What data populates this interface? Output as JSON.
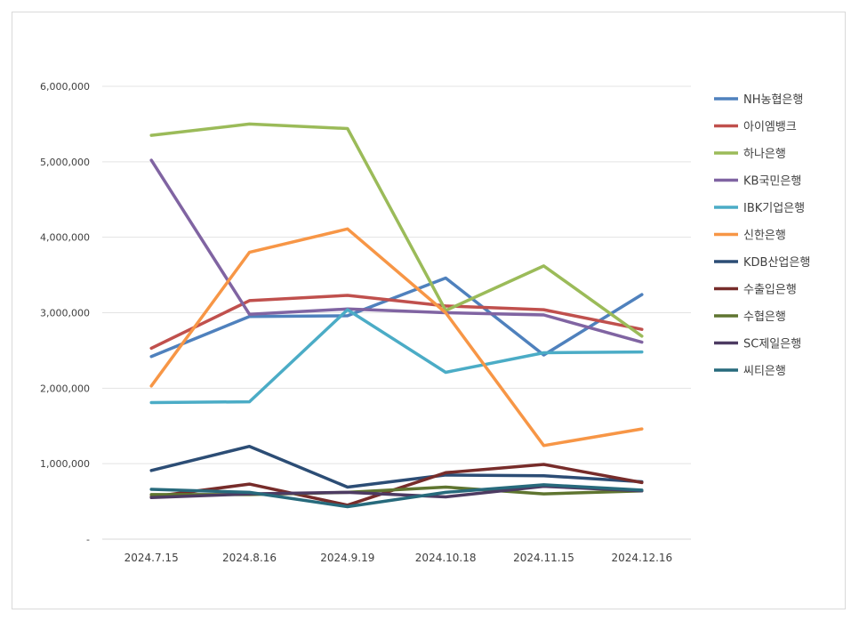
{
  "chart_data": {
    "type": "line",
    "title": "",
    "xlabel": "",
    "ylabel": "",
    "ylim": [
      0,
      6000000
    ],
    "y_ticks": [
      {
        "value": 0,
        "label": "-"
      },
      {
        "value": 1000000,
        "label": "1,000,000"
      },
      {
        "value": 2000000,
        "label": "2,000,000"
      },
      {
        "value": 3000000,
        "label": "3,000,000"
      },
      {
        "value": 4000000,
        "label": "4,000,000"
      },
      {
        "value": 5000000,
        "label": "5,000,000"
      },
      {
        "value": 6000000,
        "label": "6,000,000"
      }
    ],
    "categories": [
      "2024.7.15",
      "2024.8.16",
      "2024.9.19",
      "2024.10.18",
      "2024.11.15",
      "2024.12.16"
    ],
    "grid": true,
    "legend_position": "right",
    "series": [
      {
        "name": "NH농협은행",
        "color": "#4f81bd",
        "values": [
          2420000,
          2950000,
          2960000,
          3460000,
          2440000,
          3240000
        ]
      },
      {
        "name": "아이엠뱅크",
        "color": "#c0504d",
        "values": [
          2530000,
          3160000,
          3230000,
          3090000,
          3040000,
          2780000
        ]
      },
      {
        "name": "하나은행",
        "color": "#9bbb59",
        "values": [
          5350000,
          5500000,
          5440000,
          3030000,
          3620000,
          2690000
        ]
      },
      {
        "name": "KB국민은행",
        "color": "#8064a2",
        "values": [
          5020000,
          2980000,
          3050000,
          3000000,
          2970000,
          2610000
        ]
      },
      {
        "name": "IBK기업은행",
        "color": "#4bacc6",
        "values": [
          1810000,
          1820000,
          3040000,
          2210000,
          2470000,
          2480000
        ]
      },
      {
        "name": "신한은행",
        "color": "#f79646",
        "values": [
          2030000,
          3800000,
          4110000,
          3000000,
          1240000,
          1460000
        ]
      },
      {
        "name": "KDB산업은행",
        "color": "#2c4d75",
        "values": [
          910000,
          1230000,
          690000,
          850000,
          840000,
          760000
        ]
      },
      {
        "name": "수출입은행",
        "color": "#772c2a",
        "values": [
          560000,
          730000,
          450000,
          880000,
          990000,
          750000
        ]
      },
      {
        "name": "수협은행",
        "color": "#5f7530",
        "values": [
          590000,
          590000,
          620000,
          690000,
          600000,
          640000
        ]
      },
      {
        "name": "SC제일은행",
        "color": "#4d3b62",
        "values": [
          550000,
          600000,
          620000,
          560000,
          700000,
          640000
        ]
      },
      {
        "name": "씨티은행",
        "color": "#276a7c",
        "values": [
          660000,
          620000,
          430000,
          620000,
          720000,
          650000
        ]
      }
    ]
  }
}
